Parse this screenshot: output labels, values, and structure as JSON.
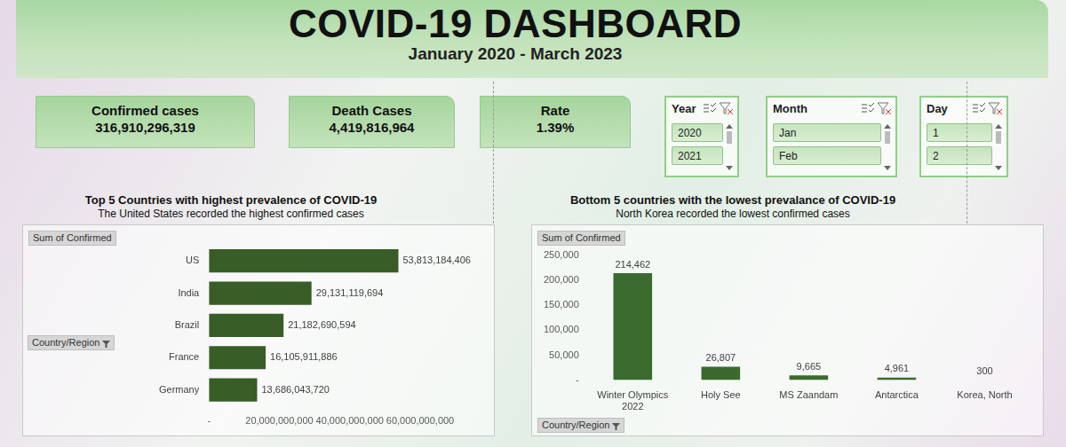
{
  "header": {
    "title": "COVID-19 DASHBOARD",
    "subtitle": "January 2020 - March 2023"
  },
  "kpis": [
    {
      "label": "Confirmed cases",
      "value": "316,910,296,319"
    },
    {
      "label": "Death Cases",
      "value": "4,419,816,964"
    },
    {
      "label": "Rate",
      "value": "1.39%"
    }
  ],
  "slicers": [
    {
      "title": "Year",
      "items": [
        "2020",
        "2021"
      ]
    },
    {
      "title": "Month",
      "items": [
        "Jan",
        "Feb"
      ]
    },
    {
      "title": "Day",
      "items": [
        "1",
        "2"
      ]
    }
  ],
  "chart_data": [
    {
      "type": "bar",
      "orientation": "horizontal",
      "title": "Top 5 Countries with highest prevalence of COVID-19",
      "subtitle": "The United States recorded the highest confirmed cases",
      "annotations": [
        "Sum of Confirmed",
        "Country/Region"
      ],
      "categories": [
        "US",
        "India",
        "Brazil",
        "France",
        "Germany"
      ],
      "values": [
        53813184406,
        29131119694,
        21182690594,
        16105911886,
        13686043720
      ],
      "value_labels": [
        "53,813,184,406",
        "29,131,119,694",
        "21,182,690,594",
        "16,105,911,886",
        "13,686,043,720"
      ],
      "color": "#385d27",
      "xlim": [
        0,
        60000000000
      ],
      "xticks": [
        {
          "value": 0,
          "label": "-"
        },
        {
          "value": 20000000000,
          "label": "20,000,000,000"
        },
        {
          "value": 40000000000,
          "label": "40,000,000,000"
        },
        {
          "value": 60000000000,
          "label": "60,000,000,000"
        }
      ],
      "grid": false,
      "data_labels": true
    },
    {
      "type": "bar",
      "title": "Bottom 5 countries with the lowest prevalance of COVID-19",
      "subtitle": "North Korea recorded the lowest confirmed cases",
      "annotations": [
        "Sum of Confirmed",
        "Country/Region"
      ],
      "categories": [
        "Winter Olympics 2022",
        "Holy See",
        "MS Zaandam",
        "Antarctica",
        "Korea, North"
      ],
      "values": [
        214462,
        26807,
        9665,
        4961,
        300
      ],
      "value_labels": [
        "214,462",
        "26,807",
        "9,665",
        "4,961",
        "300"
      ],
      "color": "#3a6a2e",
      "ylim": [
        0,
        250000
      ],
      "yticks": [
        {
          "value": 0,
          "label": "-"
        },
        {
          "value": 50000,
          "label": "50,000"
        },
        {
          "value": 100000,
          "label": "100,000"
        },
        {
          "value": 150000,
          "label": "150,000"
        },
        {
          "value": 200000,
          "label": "200,000"
        },
        {
          "value": 250000,
          "label": "250,000"
        }
      ],
      "grid": false,
      "data_labels": true
    }
  ]
}
